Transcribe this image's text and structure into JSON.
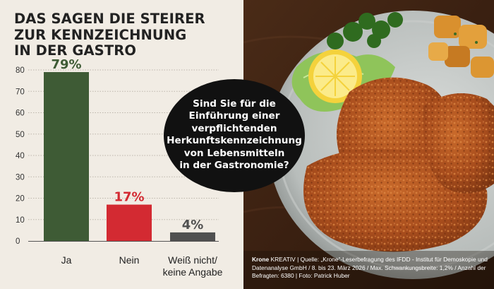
{
  "title_lines": [
    "DAS SAGEN DIE STEIRER",
    "ZUR KENNZEICHNUNG",
    "IN DER GASTRO"
  ],
  "question_lines": [
    "Sind Sie für die",
    "Einführung einer",
    "verpflichtenden",
    "Herkunftskennzeichnung",
    "von Lebensmitteln",
    "in der Gastronomie?"
  ],
  "credit": {
    "brand": "Krone",
    "brand_suffix": " KREATIV",
    "text": "  |  Quelle: „Krone“-Leserbefragung des IFDD - Institut für Demoskopie und Datenanalyse GmbH / 8. bis 23. März 2026 / Max. Schwankungsbreite: 1,2% / Anzahl der Befragten: 6380  |  Foto: Patrick Huber"
  },
  "chart_data": {
    "type": "bar",
    "categories": [
      "Ja",
      "Nein",
      "Weiß nicht/ keine Angabe"
    ],
    "category_lines": [
      [
        "Ja"
      ],
      [
        "Nein"
      ],
      [
        "Weiß nicht/",
        "keine Angabe"
      ]
    ],
    "values": [
      79,
      17,
      4
    ],
    "value_labels": [
      "79%",
      "17%",
      "4%"
    ],
    "bar_colors": [
      "#3e5b35",
      "#d32a32",
      "#505050"
    ],
    "label_colors": [
      "#3e5b35",
      "#d32a32",
      "#505050"
    ],
    "y_ticks": [
      0,
      10,
      20,
      30,
      40,
      50,
      60,
      70,
      80
    ],
    "ylim": [
      0,
      80
    ],
    "grid": true,
    "legend": false,
    "title": "DAS SAGEN DIE STEIRER ZUR KENNZEICHNUNG IN DER GASTRO",
    "xlabel": "",
    "ylabel": ""
  }
}
